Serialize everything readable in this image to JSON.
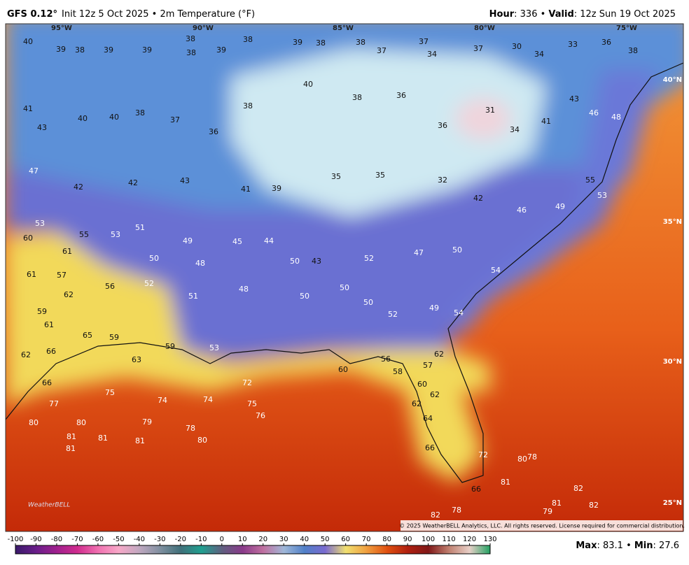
{
  "header": {
    "model": "GFS 0.12°",
    "init": "Init 12z 5 Oct 2025 • 2m Temperature (°F)",
    "hour_label": "Hour",
    "hour_text": ": 336 • ",
    "valid_label": "Valid",
    "valid_text": ": 12z Sun 19 Oct 2025"
  },
  "map": {
    "lon_labels": [
      "95°W",
      "90°W",
      "85°W",
      "80°W",
      "75°W"
    ],
    "lat_labels": [
      "40°N",
      "35°N",
      "30°N",
      "25°N"
    ],
    "labels": [
      40,
      39,
      38,
      39,
      39,
      38,
      38,
      39,
      38,
      39,
      38,
      38,
      37,
      37,
      34,
      37,
      30,
      34,
      33,
      36,
      38,
      41,
      43,
      40,
      40,
      38,
      37,
      36,
      38,
      40,
      38,
      36,
      36,
      31,
      34,
      41,
      43,
      46,
      48,
      47,
      42,
      42,
      43,
      41,
      39,
      35,
      35,
      32,
      42,
      46,
      49,
      55,
      53,
      53,
      60,
      61,
      55,
      53,
      51,
      50,
      49,
      48,
      45,
      44,
      50,
      43,
      52,
      47,
      50,
      54,
      61,
      57,
      62,
      56,
      52,
      51,
      48,
      50,
      50,
      50,
      52,
      49,
      54,
      59,
      61,
      65,
      59,
      62,
      66,
      63,
      59,
      53,
      72,
      66,
      77,
      75,
      74,
      74,
      75,
      76,
      80,
      80,
      79,
      78,
      80,
      81,
      81,
      81,
      81,
      60,
      62,
      62,
      64,
      66,
      72,
      80,
      78,
      81,
      82,
      82,
      81,
      79,
      66,
      78,
      82,
      56,
      58,
      57,
      62,
      60
    ],
    "copyright": "© 2025 WeatherBELL Analytics, LLC. All rights reserved. License required for commercial distribution.",
    "logo": "WeatherBELL"
  },
  "legend": {
    "ticks": [
      -100,
      -90,
      -80,
      -70,
      -60,
      -50,
      -40,
      -30,
      -20,
      -10,
      0,
      10,
      20,
      30,
      40,
      50,
      60,
      70,
      80,
      90,
      100,
      110,
      120,
      130
    ],
    "colors": [
      "#3a1a6a",
      "#6a1e8a",
      "#a0208e",
      "#d02c8e",
      "#f070b0",
      "#f8a8c8",
      "#c0a8c0",
      "#8090a0",
      "#40707a",
      "#20a090",
      "#606080",
      "#8a3a8a",
      "#c070a0",
      "#a0b8d8",
      "#5080c8",
      "#7a6ad0",
      "#f0e070",
      "#f0a040",
      "#e05010",
      "#b02010",
      "#801818",
      "#c08070",
      "#e8d0c8",
      "#20a060"
    ]
  },
  "footer": {
    "max_label": "Max",
    "max": 83.1,
    "sep": " • ",
    "min_label": "Min",
    "min": 27.6
  }
}
